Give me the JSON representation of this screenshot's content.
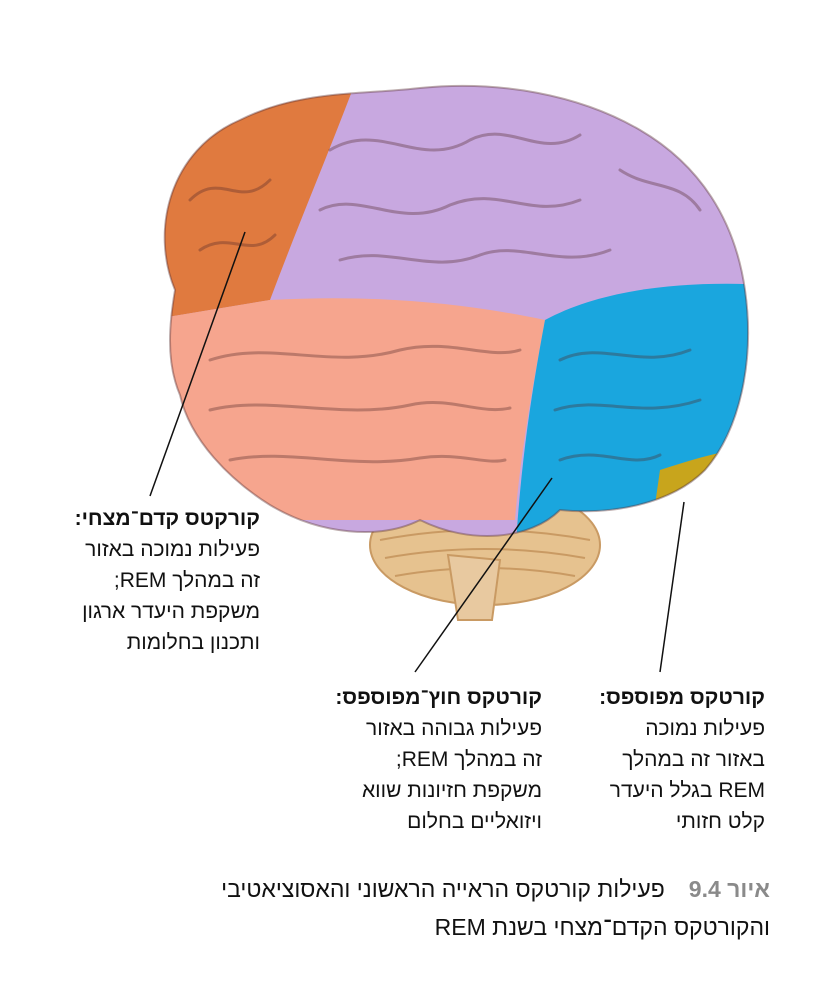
{
  "labels": {
    "prefrontal": {
      "title": "קורקטס קדם־מצחי:",
      "lines": [
        "פעילות נמוכה באזור",
        "זה במהלך REM;",
        "משקפת היעדר ארגון",
        "ותכנון בחלומות"
      ]
    },
    "extrastriate": {
      "title": "קורטקס חוץ־מפוספס:",
      "lines": [
        "פעילות גבוהה באזור",
        "זה במהלך REM;",
        "משקפת חזיונות שווא",
        "ויזואליים בחלום"
      ]
    },
    "striate": {
      "title": "קורטקס מפוספס:",
      "lines": [
        "פעילות נמוכה",
        "באזור זה במהלך",
        "REM בגלל היעדר",
        "קלט חזותי"
      ]
    }
  },
  "caption": {
    "figure_number": "איור 9.4",
    "text_line1": "פעילות קורטקס הראייה הראשוני והאסוציאטיבי",
    "text_line2": "והקורטקס הקדם־מצחי בשנת REM"
  },
  "colors": {
    "frontal": "#e07a3f",
    "parietal": "#c8a8e0",
    "temporal": "#f6a58e",
    "occipital": "#1aa6de",
    "striate": "#c8a51c",
    "cerebellum": "#e6c28f"
  }
}
